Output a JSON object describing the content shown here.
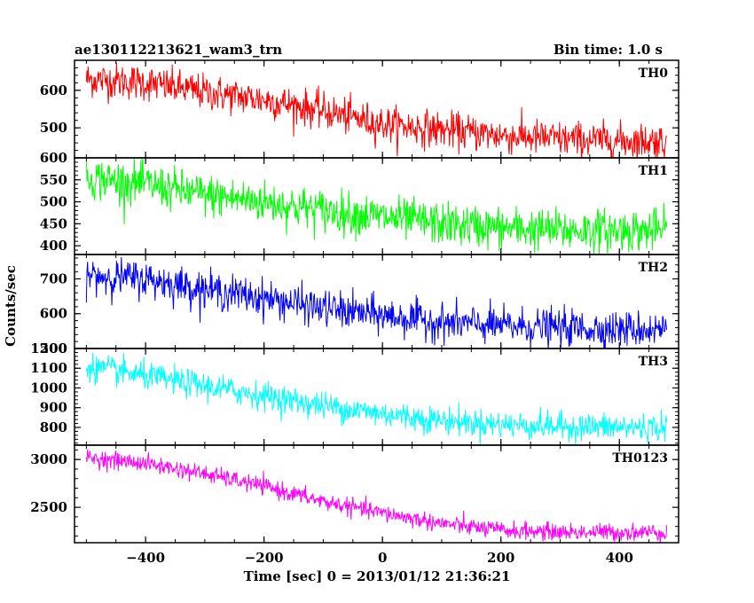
{
  "header": {
    "title": "ae130112213621_wam3_trn",
    "bin_time": "Bin time: 1.0 s"
  },
  "chart_data": {
    "type": "line",
    "title": "ae130112213621_wam3_trn",
    "xlabel": "Time [sec] 0 = 2013/01/12 21:36:21",
    "ylabel": "Counts/sec",
    "xlim": [
      -520,
      500
    ],
    "x_ticks": [
      -400,
      -200,
      0,
      200,
      400
    ],
    "x_tick_labels": [
      "−400",
      "−200",
      "0",
      "200",
      "400"
    ],
    "x_range": [
      -500,
      480
    ],
    "bin_time_s": 1.0,
    "grid": false,
    "panels": [
      {
        "name": "TH0",
        "color": "#ff0000",
        "ylim": [
          420,
          680
        ],
        "y_ticks": [
          500,
          600
        ],
        "y_tick_labels": [
          "500",
          "600"
        ],
        "trend": {
          "x": [
            -500,
            -400,
            -300,
            -200,
            -100,
            0,
            100,
            200,
            300,
            400,
            480
          ],
          "y": [
            630,
            620,
            595,
            575,
            545,
            510,
            495,
            480,
            470,
            465,
            465
          ]
        },
        "noise_sigma": 24
      },
      {
        "name": "TH1",
        "color": "#00ff00",
        "ylim": [
          380,
          600
        ],
        "y_ticks": [
          400,
          450,
          500,
          550,
          600
        ],
        "y_tick_labels": [
          "400",
          "450",
          "500",
          "550",
          "600"
        ],
        "trend": {
          "x": [
            -500,
            -400,
            -300,
            -200,
            -100,
            0,
            100,
            200,
            300,
            400,
            480
          ],
          "y": [
            555,
            540,
            515,
            500,
            480,
            465,
            450,
            440,
            435,
            435,
            435
          ]
        },
        "noise_sigma": 24
      },
      {
        "name": "TH2",
        "color": "#0000ff",
        "ylim": [
          500,
          770
        ],
        "y_ticks": [
          500,
          600,
          700
        ],
        "y_tick_labels": [
          "500",
          "600",
          "700"
        ],
        "trend": {
          "x": [
            -500,
            -400,
            -300,
            -200,
            -100,
            0,
            100,
            200,
            300,
            400,
            480
          ],
          "y": [
            710,
            700,
            670,
            645,
            615,
            595,
            575,
            565,
            560,
            555,
            555
          ]
        },
        "noise_sigma": 26
      },
      {
        "name": "TH3",
        "color": "#00ffff",
        "ylim": [
          710,
          1200
        ],
        "y_ticks": [
          800,
          900,
          1000,
          1100,
          1200
        ],
        "y_tick_labels": [
          "800",
          "900",
          "1000",
          "1100",
          "1200"
        ],
        "trend": {
          "x": [
            -500,
            -400,
            -300,
            -200,
            -100,
            0,
            100,
            200,
            300,
            400,
            480
          ],
          "y": [
            1110,
            1060,
            1010,
            960,
            910,
            870,
            835,
            815,
            805,
            800,
            800
          ]
        },
        "noise_sigma": 35
      },
      {
        "name": "TH0123",
        "color": "#ff00ff",
        "ylim": [
          2130,
          3150
        ],
        "y_ticks": [
          2500,
          3000
        ],
        "y_tick_labels": [
          "2500",
          "3000"
        ],
        "trend": {
          "x": [
            -500,
            -400,
            -300,
            -200,
            -100,
            0,
            100,
            200,
            300,
            400,
            480
          ],
          "y": [
            3020,
            2960,
            2850,
            2720,
            2560,
            2440,
            2330,
            2260,
            2240,
            2240,
            2240
          ]
        },
        "noise_sigma": 45
      }
    ]
  }
}
